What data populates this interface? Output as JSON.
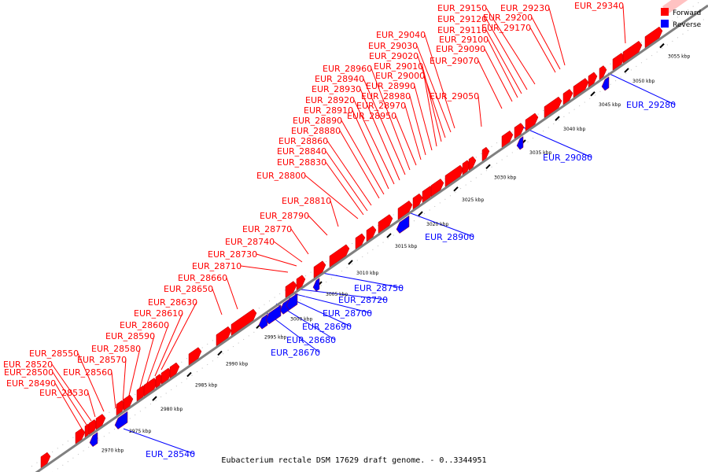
{
  "caption": "Eubacterium rectale DSM 17629 draft genome. - 0..3344951",
  "colors": {
    "forward": "#ff0000",
    "reverse": "#0000ff",
    "axis": "#808080"
  },
  "legend": [
    {
      "name": "Forward",
      "color": "#ff0000"
    },
    {
      "name": "Reverse",
      "color": "#0000ff"
    }
  ],
  "chart_data": {
    "type": "diagram",
    "range_kbp": [
      2968,
      3060
    ],
    "ticks": [
      "2970 kbp",
      "2975 kbp",
      "2980 kbp",
      "2985 kbp",
      "2990 kbp",
      "2995 kbp",
      "3000 kbp",
      "3005 kbp",
      "3010 kbp",
      "3015 kbp",
      "3020 kbp",
      "3025 kbp",
      "3030 kbp",
      "3035 kbp",
      "3040 kbp",
      "3045 kbp",
      "3050 kbp",
      "3055 kbp"
    ],
    "forward_labels": [
      "EUR_28490",
      "EUR_28500",
      "EUR_28520",
      "EUR_28530",
      "EUR_28550",
      "EUR_28560",
      "EUR_28570",
      "EUR_28580",
      "EUR_28590",
      "EUR_28600",
      "EUR_28610",
      "EUR_28630",
      "EUR_28650",
      "EUR_28660",
      "EUR_28710",
      "EUR_28730",
      "EUR_28740",
      "EUR_28770",
      "EUR_28790",
      "EUR_28810",
      "EUR_28800",
      "EUR_28830",
      "EUR_28840",
      "EUR_28860",
      "EUR_28880",
      "EUR_28890",
      "EUR_28910",
      "EUR_28920",
      "EUR_28930",
      "EUR_28940",
      "EUR_28960",
      "EUR_28950",
      "EUR_28970",
      "EUR_28980",
      "EUR_28990",
      "EUR_29000",
      "EUR_29010",
      "EUR_29020",
      "EUR_29030",
      "EUR_29040",
      "EUR_29050",
      "EUR_29070",
      "EUR_29090",
      "EUR_29100",
      "EUR_29110",
      "EUR_29120",
      "EUR_29150",
      "EUR_29170",
      "EUR_29200",
      "EUR_29230",
      "EUR_29340"
    ],
    "reverse_labels": [
      "EUR_28540",
      "EUR_28670",
      "EUR_28680",
      "EUR_28690",
      "EUR_28700",
      "EUR_28720",
      "EUR_28750",
      "EUR_28900",
      "EUR_29080",
      "EUR_29280"
    ]
  }
}
